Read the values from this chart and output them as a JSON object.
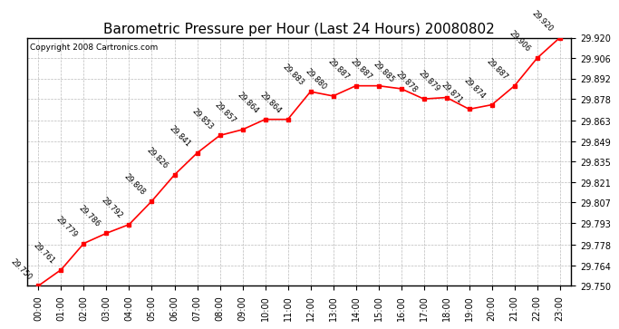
{
  "title": "Barometric Pressure per Hour (Last 24 Hours) 20080802",
  "copyright": "Copyright 2008 Cartronics.com",
  "hours": [
    "00:00",
    "01:00",
    "02:00",
    "03:00",
    "04:00",
    "05:00",
    "06:00",
    "07:00",
    "08:00",
    "09:00",
    "10:00",
    "11:00",
    "12:00",
    "13:00",
    "14:00",
    "15:00",
    "16:00",
    "17:00",
    "18:00",
    "19:00",
    "20:00",
    "21:00",
    "22:00",
    "23:00"
  ],
  "values": [
    29.75,
    29.761,
    29.779,
    29.786,
    29.792,
    29.808,
    29.826,
    29.841,
    29.853,
    29.857,
    29.864,
    29.864,
    29.883,
    29.88,
    29.887,
    29.887,
    29.885,
    29.878,
    29.879,
    29.871,
    29.874,
    29.887,
    29.906,
    29.92
  ],
  "ylim": [
    29.75,
    29.92
  ],
  "yticks": [
    29.75,
    29.764,
    29.778,
    29.793,
    29.807,
    29.821,
    29.835,
    29.849,
    29.863,
    29.878,
    29.892,
    29.906,
    29.92
  ],
  "line_color": "red",
  "marker_color": "red",
  "marker_size": 3,
  "bg_color": "#ffffff",
  "grid_color": "#bbbbbb",
  "title_fontsize": 11,
  "annotation_fontsize": 6,
  "annotation_rotation": 315,
  "xlabel_fontsize": 7,
  "ylabel_fontsize": 7
}
